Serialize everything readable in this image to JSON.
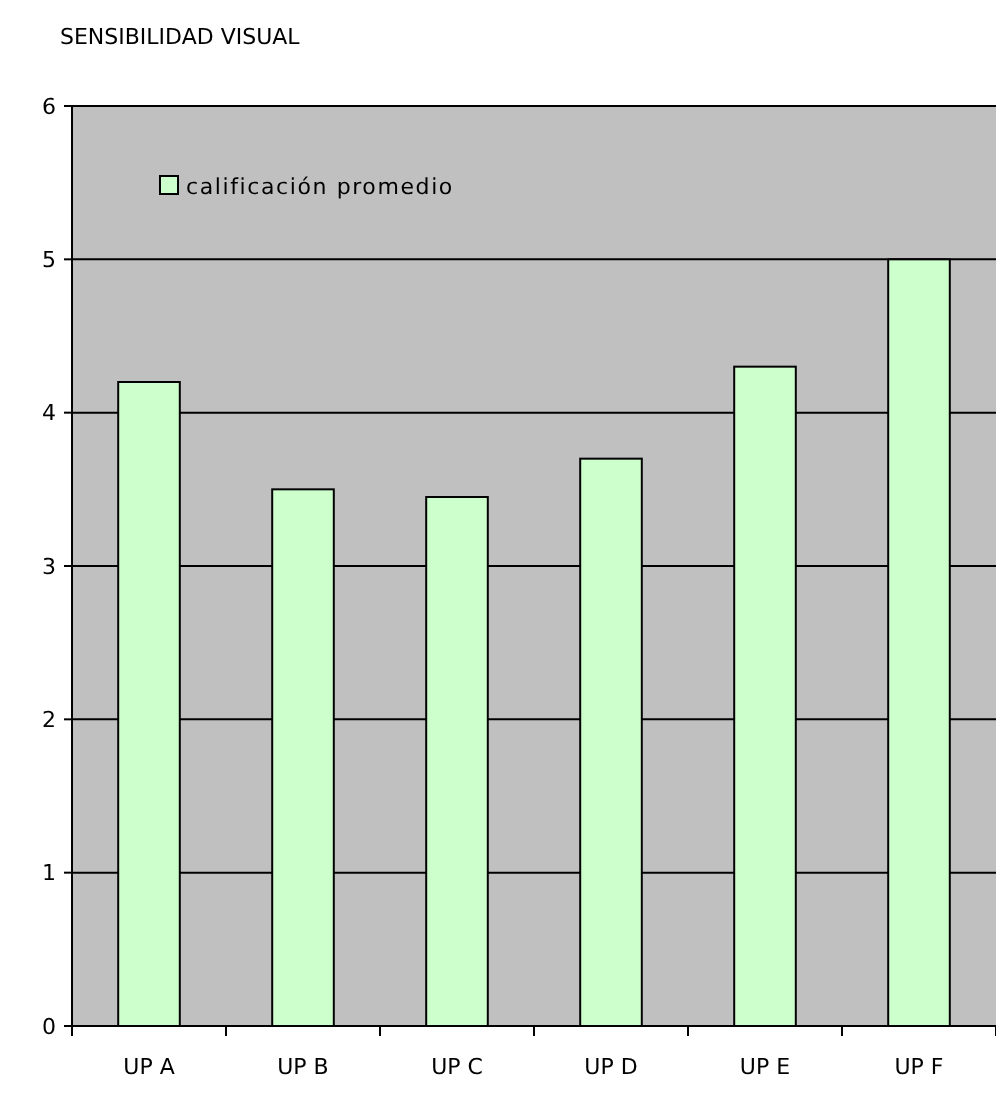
{
  "chart_data": {
    "type": "bar",
    "title": "SENSIBILIDAD VISUAL",
    "categories": [
      "UP A",
      "UP B",
      "UP C",
      "UP D",
      "UP E",
      "UP F"
    ],
    "series": [
      {
        "name": "calificación promedio",
        "color": "#ccffcc",
        "values": [
          4.2,
          3.5,
          3.45,
          3.7,
          4.3,
          5
        ]
      }
    ],
    "ylim": [
      0,
      6
    ],
    "yticks": [
      0,
      1,
      2,
      3,
      4,
      5,
      6
    ],
    "grid": "y",
    "legend": "top left"
  }
}
